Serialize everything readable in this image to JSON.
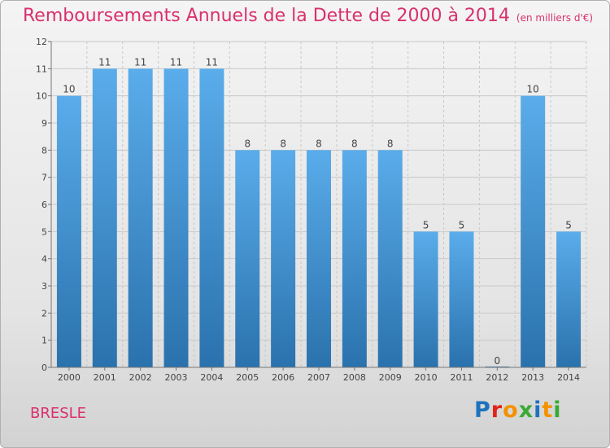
{
  "title": "Remboursements Annuels de la Dette de 2000 à 2014",
  "unit": "(en milliers d'€)",
  "commune": "BRESLE",
  "logo": {
    "text": "Proxiti",
    "colors": [
      "#1e73be",
      "#e2231a",
      "#f39200",
      "#3aaa35",
      "#1e73be",
      "#f39200",
      "#3aaa35"
    ]
  },
  "colors": {
    "title": "#d9306d",
    "bar_light": "#5aacea",
    "bar_dark": "#2a72ad",
    "grid": "#c8c8c8",
    "axis": "#777777"
  },
  "chart_data": {
    "type": "bar",
    "title": "Remboursements Annuels de la Dette de 2000 à 2014",
    "xlabel": "",
    "ylabel": "",
    "categories": [
      "2000",
      "2001",
      "2002",
      "2003",
      "2004",
      "2005",
      "2006",
      "2007",
      "2008",
      "2009",
      "2010",
      "2011",
      "2012",
      "2013",
      "2014"
    ],
    "values": [
      10,
      11,
      11,
      11,
      11,
      8,
      8,
      8,
      8,
      8,
      5,
      5,
      0,
      10,
      5
    ],
    "ylim": [
      0,
      12
    ],
    "yticks": [
      0,
      1,
      2,
      3,
      4,
      5,
      6,
      7,
      8,
      9,
      10,
      11,
      12
    ],
    "grid": true
  }
}
